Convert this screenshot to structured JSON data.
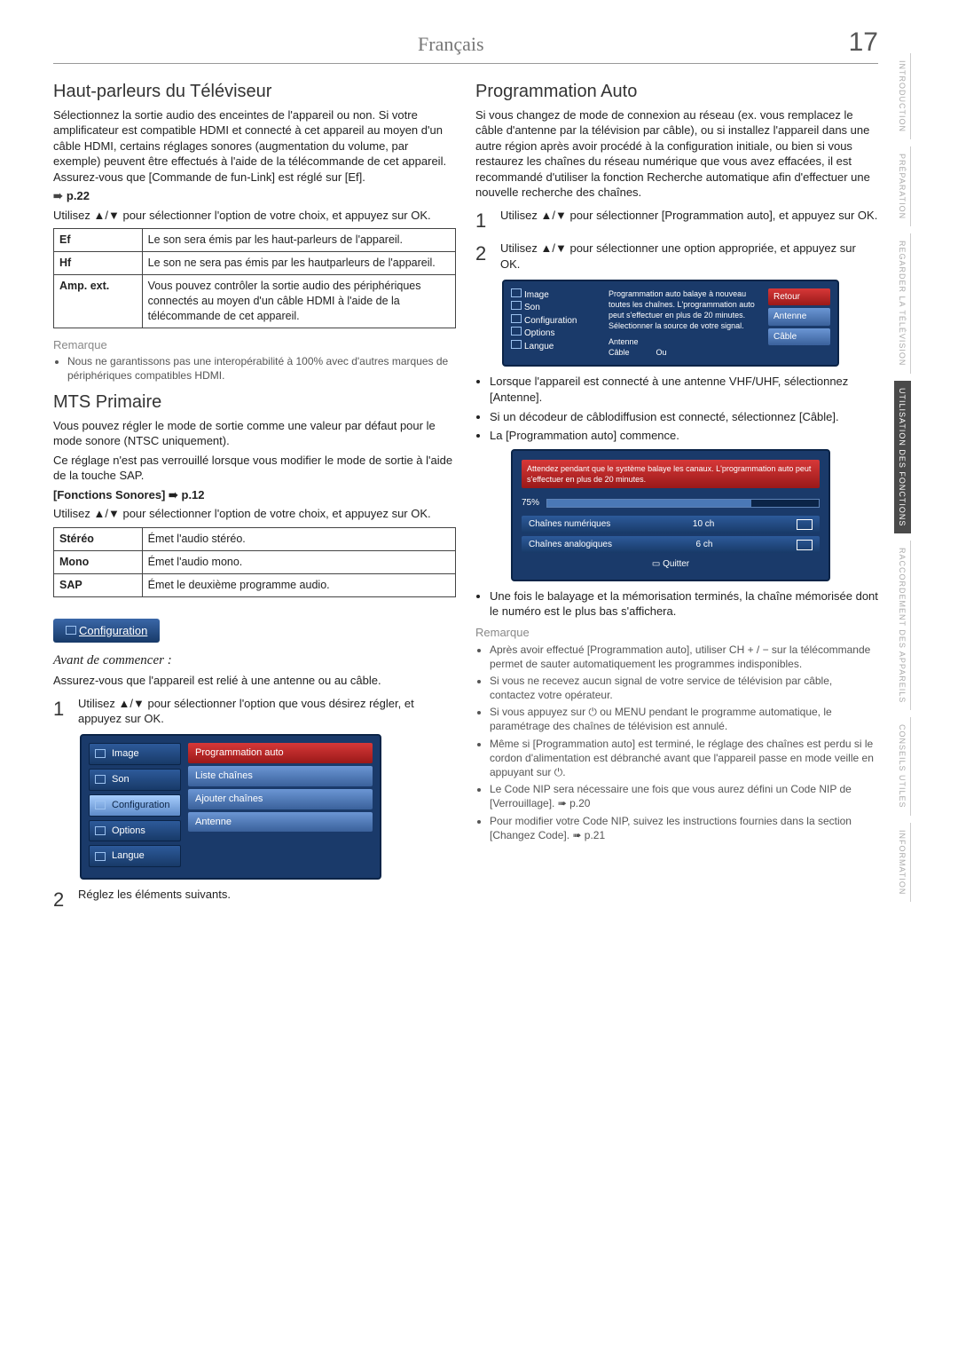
{
  "header": {
    "language": "Français",
    "page": "17"
  },
  "sideTabs": [
    "INTRODUCTION",
    "PRÉPARATION",
    "REGARDER LA TÉLÉVISION",
    "UTILISATION DES FONCTIONS",
    "RACCORDEMENT DES APPAREILS",
    "CONSEILS UTILES",
    "INFORMATION"
  ],
  "sideTabActive": 3,
  "left": {
    "h1": "Haut-parleurs du Téléviseur",
    "p1": "Sélectionnez la sortie audio des enceintes de l'appareil ou non. Si votre amplificateur est compatible HDMI et connecté à cet appareil au moyen d'un câble HDMI, certains réglages sonores (augmentation du volume, par exemple) peuvent être effectués à l'aide de la télécommande de cet appareil. Assurez-vous que [Commande de fun-Link] est réglé sur [Ef].",
    "pref1": "p.22",
    "p2": "Utilisez ▲/▼ pour sélectionner l'option de votre choix, et appuyez sur OK.",
    "t1": [
      [
        "Ef",
        "Le son sera émis par les haut-parleurs de l'appareil."
      ],
      [
        "Hf",
        "Le son ne sera pas émis par les hautparleurs de l'appareil."
      ],
      [
        "Amp. ext.",
        "Vous pouvez contrôler la sortie audio des périphériques connectés au moyen d'un câble HDMI à l'aide de la télécommande de cet appareil."
      ]
    ],
    "rem1Title": "Remarque",
    "rem1": [
      "Nous ne garantissons pas une interopérabilité à 100% avec d'autres marques de périphériques compatibles HDMI."
    ],
    "h2": "MTS Primaire",
    "p3": "Vous pouvez régler le mode de sortie comme une valeur par défaut pour le mode sonore (NTSC uniquement).",
    "p4": "Ce réglage n'est pas verrouillé lorsque vous modifier le mode de sortie à l'aide de la touche SAP.",
    "pref2": "[Fonctions Sonores] ➠ p.12",
    "p5": "Utilisez ▲/▼ pour sélectionner l'option de votre choix, et appuyez sur OK.",
    "t2": [
      [
        "Stéréo",
        "Émet l'audio stéréo."
      ],
      [
        "Mono",
        "Émet l'audio mono."
      ],
      [
        "SAP",
        "Émet le deuxième programme audio."
      ]
    ],
    "configLabel": "Configuration",
    "h3": "Avant de commencer :",
    "p6": "Assurez-vous que l'appareil est relié à une antenne ou au câble.",
    "step1": "Utilisez ▲/▼ pour sélectionner l'option que vous désirez régler, et appuyez sur OK.",
    "menuSide": [
      "Image",
      "Son",
      "Configuration",
      "Options",
      "Langue"
    ],
    "menuContent": [
      "Programmation auto",
      "Liste chaînes",
      "Ajouter chaînes",
      "Antenne"
    ],
    "step2": "Réglez les éléments suivants."
  },
  "right": {
    "h1": "Programmation Auto",
    "p1": "Si vous changez de mode de connexion au réseau (ex. vous remplacez le câble d'antenne par la télévision par câble), ou si installez l'appareil dans une autre région après avoir procédé à la configuration initiale, ou bien si vous restaurez les chaînes du réseau numérique que vous avez effacées, il est recommandé d'utiliser la fonction Recherche automatique afin d'effectuer une nouvelle recherche des chaînes.",
    "step1": "Utilisez ▲/▼ pour sélectionner [Programmation auto], et appuyez sur OK.",
    "step2": "Utilisez ▲/▼ pour sélectionner une option appropriée, et appuyez sur OK.",
    "menu2Desc": "Programmation auto balaye à nouveau toutes les chaînes. L'programmation auto peut s'effectuer en plus de 20 minutes. Sélectionner la source de votre signal.",
    "menu2Btns": [
      "Retour",
      "Antenne",
      "Câble"
    ],
    "diagLabels": [
      "Antenne",
      "Câble",
      "Ou"
    ],
    "bul1": [
      "Lorsque l'appareil est connecté à une antenne VHF/UHF, sélectionnez [Antenne].",
      "Si un décodeur de câblodiffusion est connecté, sélectionnez [Câble].",
      "La [Programmation auto] commence."
    ],
    "scan": {
      "msg": "Attendez pendant que le système balaye les canaux. L'programmation auto peut s'effectuer en plus de 20 minutes.",
      "pct": "75%",
      "rows": [
        [
          "Chaînes numériques",
          "10 ch"
        ],
        [
          "Chaînes analogiques",
          "6 ch"
        ]
      ],
      "quit": "Quitter"
    },
    "bul2": [
      "Une fois le balayage et la mémorisation terminés, la chaîne mémorisée dont le numéro est le plus bas s'affichera."
    ],
    "rem2Title": "Remarque",
    "rem2": [
      "Après avoir effectué [Programmation auto], utiliser CH + / − sur la télécommande permet de sauter automatiquement les programmes indisponibles.",
      "Si vous ne recevez aucun signal de votre service de télévision par câble, contactez votre opérateur.",
      "Si vous appuyez sur ⏻ ou MENU pendant le programme automatique, le paramétrage des chaînes de télévision est annulé.",
      "Même si [Programmation auto] est terminé, le réglage des chaînes est perdu si le cordon d'alimentation est débranché avant que l'appareil passe en mode veille en appuyant sur ⏻.",
      "Le Code NIP sera nécessaire une fois que vous aurez défini un Code NIP de [Verrouillage]. ➠ p.20",
      "Pour modifier votre Code NIP, suivez les instructions fournies dans la section [Changez Code]. ➠ p.21"
    ]
  }
}
